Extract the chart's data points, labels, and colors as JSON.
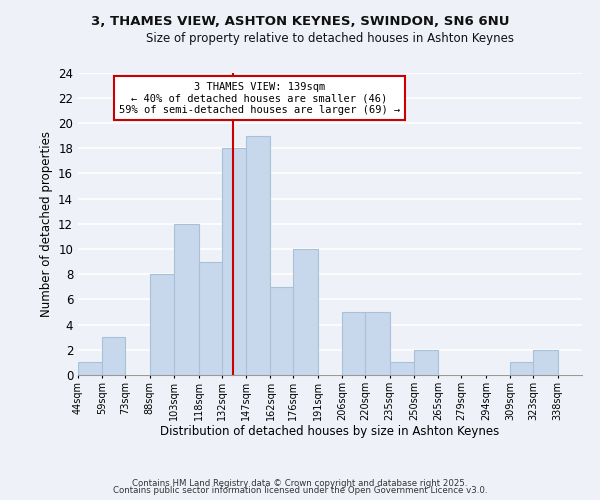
{
  "title": "3, THAMES VIEW, ASHTON KEYNES, SWINDON, SN6 6NU",
  "subtitle": "Size of property relative to detached houses in Ashton Keynes",
  "xlabel": "Distribution of detached houses by size in Ashton Keynes",
  "ylabel": "Number of detached properties",
  "bar_color": "#c8d8ec",
  "bar_edge_color": "#a8c0d8",
  "bin_labels": [
    "44sqm",
    "59sqm",
    "73sqm",
    "88sqm",
    "103sqm",
    "118sqm",
    "132sqm",
    "147sqm",
    "162sqm",
    "176sqm",
    "191sqm",
    "206sqm",
    "220sqm",
    "235sqm",
    "250sqm",
    "265sqm",
    "279sqm",
    "294sqm",
    "309sqm",
    "323sqm",
    "338sqm"
  ],
  "bin_edges": [
    44,
    59,
    73,
    88,
    103,
    118,
    132,
    147,
    162,
    176,
    191,
    206,
    220,
    235,
    250,
    265,
    279,
    294,
    309,
    323,
    338,
    353
  ],
  "counts": [
    1,
    3,
    0,
    8,
    12,
    9,
    18,
    19,
    7,
    10,
    0,
    5,
    5,
    1,
    2,
    0,
    0,
    0,
    1,
    2,
    0
  ],
  "vline_x": 139,
  "vline_color": "#cc0000",
  "annotation_title": "3 THAMES VIEW: 139sqm",
  "annotation_line1": "← 40% of detached houses are smaller (46)",
  "annotation_line2": "59% of semi-detached houses are larger (69) →",
  "annotation_box_color": "#ffffff",
  "annotation_box_edge": "#cc0000",
  "ylim": [
    0,
    24
  ],
  "yticks": [
    0,
    2,
    4,
    6,
    8,
    10,
    12,
    14,
    16,
    18,
    20,
    22,
    24
  ],
  "background_color": "#eef2f8",
  "grid_color": "#ffffff",
  "footer_line1": "Contains HM Land Registry data © Crown copyright and database right 2025.",
  "footer_line2": "Contains public sector information licensed under the Open Government Licence v3.0."
}
